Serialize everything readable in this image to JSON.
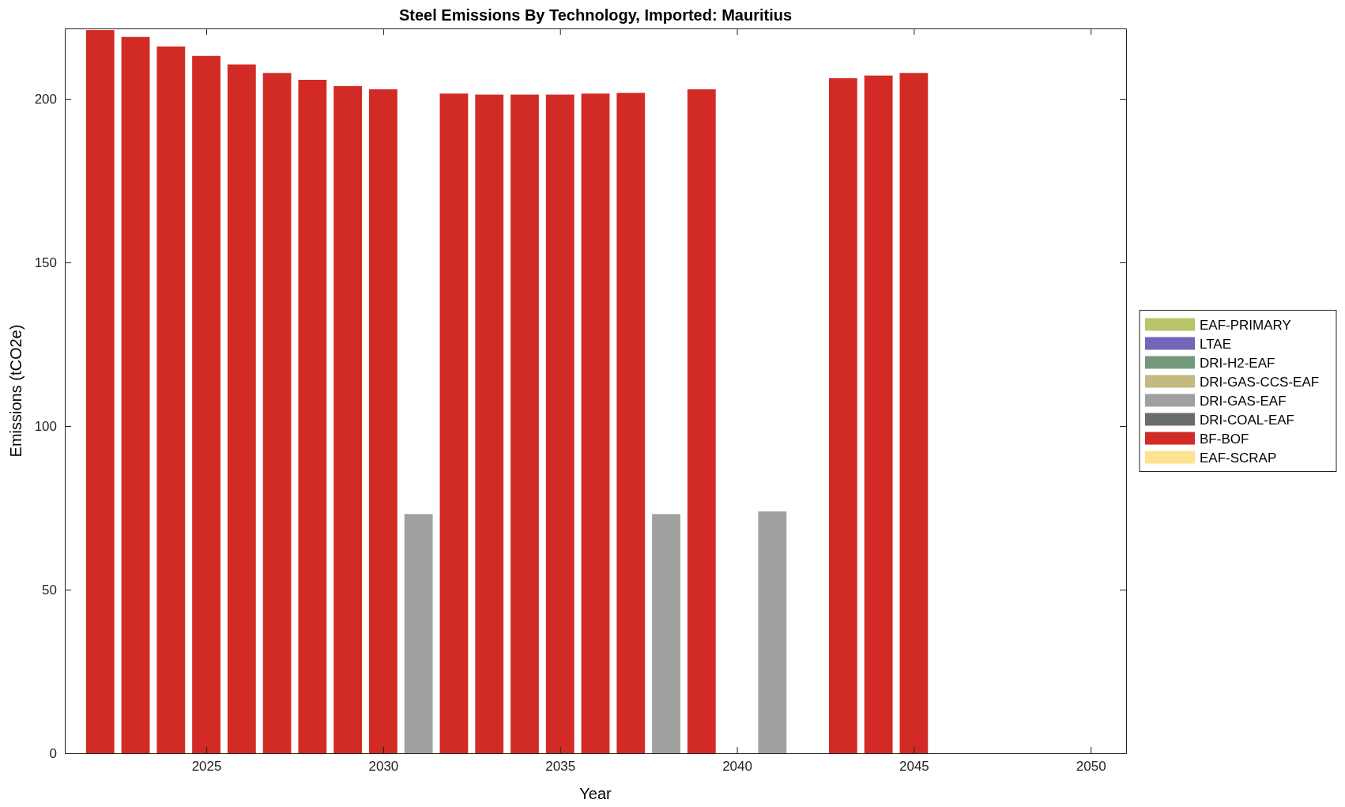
{
  "chart_data": {
    "type": "bar",
    "title": "Steel Emissions By Technology, Imported: Mauritius",
    "xlabel": "Year",
    "ylabel": "Emissions (tCO2e)",
    "legend": "right",
    "grid": false,
    "x": [
      2022,
      2023,
      2024,
      2025,
      2026,
      2027,
      2028,
      2029,
      2030,
      2031,
      2032,
      2033,
      2034,
      2035,
      2036,
      2037,
      2038,
      2039,
      2040,
      2041,
      2042,
      2043,
      2044,
      2045
    ],
    "xlim": [
      2021,
      2051
    ],
    "xticks": [
      2025,
      2030,
      2035,
      2040,
      2045,
      2050
    ],
    "ylim": [
      0,
      221.5
    ],
    "yticks": [
      0,
      50,
      100,
      150,
      200
    ],
    "series": [
      {
        "name": "EAF-PRIMARY",
        "color": "#b9c46b",
        "values": [
          null,
          null,
          null,
          null,
          null,
          null,
          null,
          null,
          null,
          null,
          null,
          null,
          null,
          null,
          null,
          null,
          null,
          null,
          null,
          null,
          null,
          null,
          null,
          null
        ]
      },
      {
        "name": "LTAE",
        "color": "#7266b8",
        "values": [
          null,
          null,
          null,
          null,
          null,
          null,
          null,
          null,
          null,
          null,
          null,
          null,
          null,
          null,
          null,
          null,
          null,
          null,
          null,
          null,
          null,
          null,
          null,
          null
        ]
      },
      {
        "name": "DRI-H2-EAF",
        "color": "#73997a",
        "values": [
          null,
          null,
          null,
          null,
          null,
          null,
          null,
          null,
          null,
          null,
          null,
          null,
          null,
          null,
          null,
          null,
          null,
          null,
          null,
          null,
          null,
          null,
          null,
          null
        ]
      },
      {
        "name": "DRI-GAS-CCS-EAF",
        "color": "#c4b97f",
        "values": [
          null,
          null,
          null,
          null,
          null,
          null,
          null,
          null,
          null,
          null,
          null,
          null,
          null,
          null,
          null,
          null,
          null,
          null,
          null,
          null,
          null,
          null,
          null,
          null
        ]
      },
      {
        "name": "DRI-GAS-EAF",
        "color": "#a0a09e",
        "values": [
          null,
          null,
          null,
          null,
          null,
          null,
          null,
          null,
          null,
          73.1,
          null,
          null,
          null,
          null,
          null,
          null,
          73.1,
          null,
          null,
          73.9,
          null,
          null,
          null,
          null
        ]
      },
      {
        "name": "DRI-COAL-EAF",
        "color": "#6b6b6b",
        "values": [
          null,
          null,
          null,
          null,
          null,
          null,
          null,
          null,
          null,
          null,
          null,
          null,
          null,
          null,
          null,
          null,
          null,
          null,
          null,
          null,
          null,
          null,
          null,
          null
        ]
      },
      {
        "name": "BF-BOF",
        "color": "#d22b26",
        "values": [
          221,
          218.9,
          216,
          213.1,
          210.5,
          207.9,
          205.8,
          203.9,
          202.9,
          null,
          201.6,
          201.3,
          201.3,
          201.3,
          201.6,
          201.8,
          null,
          202.9,
          null,
          null,
          null,
          206.3,
          207.1,
          207.9
        ]
      },
      {
        "name": "EAF-SCRAP",
        "color": "#fce38f",
        "values": [
          null,
          null,
          null,
          null,
          null,
          null,
          null,
          null,
          null,
          null,
          null,
          null,
          null,
          null,
          null,
          null,
          null,
          null,
          null,
          null,
          null,
          null,
          null,
          null
        ]
      }
    ]
  }
}
